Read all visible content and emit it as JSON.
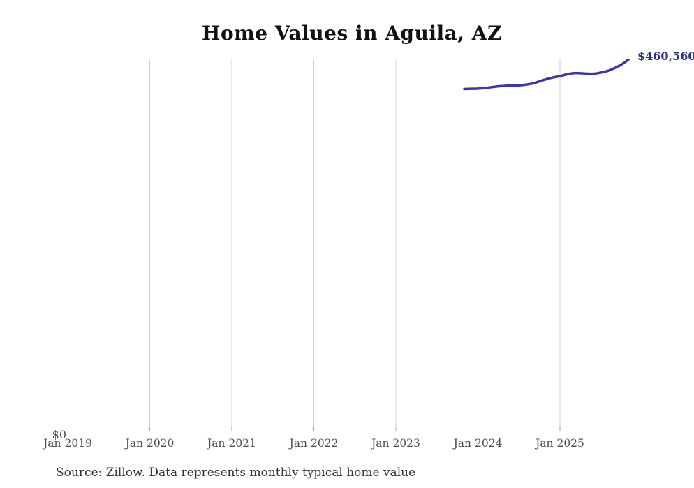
{
  "title": "Home Values in Aguila, AZ",
  "source_note": "Source: Zillow. Data represents monthly typical home value",
  "end_label": "$460,560",
  "y_axis": {
    "zero_label": "$0"
  },
  "x_axis": {
    "ticks": [
      {
        "label": "Jan 2019",
        "gridline": false
      },
      {
        "label": "Jan 2020",
        "gridline": true
      },
      {
        "label": "Jan 2021",
        "gridline": true
      },
      {
        "label": "Jan 2022",
        "gridline": true
      },
      {
        "label": "Jan 2023",
        "gridline": true
      },
      {
        "label": "Jan 2024",
        "gridline": true
      },
      {
        "label": "Jan 2025",
        "gridline": true
      }
    ]
  },
  "colors": {
    "line": "#3a35aa",
    "end_label": "#2b2f85",
    "gridline": "#d0d0d0",
    "tick": "#a0a0a0",
    "axis_text": "#4d4d4d"
  },
  "chart_data": {
    "type": "line",
    "title": "Home Values in Aguila, AZ",
    "xlabel": "",
    "ylabel": "",
    "ylim": [
      0,
      460560
    ],
    "x_range_shown": [
      "Jan 2019",
      "Nov 2025"
    ],
    "grid": "vertical-only",
    "legend": false,
    "annotation": {
      "text": "$460,560",
      "position": "end-of-line",
      "clipped_at_right_edge": true
    },
    "series": [
      {
        "name": "Monthly typical home value",
        "x": [
          "Nov 2023",
          "Dec 2023",
          "Jan 2024",
          "Feb 2024",
          "Mar 2024",
          "Apr 2024",
          "May 2024",
          "Jun 2024",
          "Jul 2024",
          "Aug 2024",
          "Sep 2024",
          "Oct 2024",
          "Nov 2024",
          "Dec 2024",
          "Jan 2025",
          "Feb 2025",
          "Mar 2025",
          "Apr 2025",
          "May 2025",
          "Jun 2025",
          "Jul 2025",
          "Aug 2025",
          "Sep 2025",
          "Oct 2025",
          "Nov 2025"
        ],
        "values": [
          423800,
          424100,
          424400,
          425100,
          426200,
          427200,
          427800,
          428300,
          428400,
          429300,
          430800,
          433400,
          436100,
          438300,
          440000,
          442200,
          443700,
          443600,
          443100,
          443100,
          444400,
          446600,
          450100,
          454500,
          460560
        ]
      }
    ]
  }
}
